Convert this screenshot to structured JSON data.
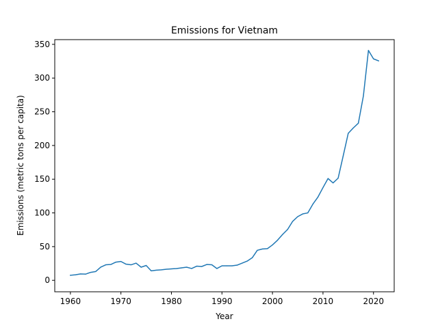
{
  "chart_data": {
    "type": "line",
    "title": "Emissions for Vietnam",
    "xlabel": "Year",
    "ylabel": "Emissions (metric tons per capita)",
    "xlim": [
      1956.9,
      2024.1
    ],
    "ylim": [
      -17,
      357
    ],
    "xticks": [
      1960,
      1970,
      1980,
      1990,
      2000,
      2010,
      2020
    ],
    "yticks": [
      0,
      50,
      100,
      150,
      200,
      250,
      300,
      350
    ],
    "grid": false,
    "series": [
      {
        "color": "#1f77b4",
        "x": [
          1960,
          1961,
          1962,
          1963,
          1964,
          1965,
          1966,
          1967,
          1968,
          1969,
          1970,
          1971,
          1972,
          1973,
          1974,
          1975,
          1976,
          1977,
          1978,
          1979,
          1980,
          1981,
          1982,
          1983,
          1984,
          1985,
          1986,
          1987,
          1988,
          1989,
          1990,
          1991,
          1992,
          1993,
          1994,
          1995,
          1996,
          1997,
          1998,
          1999,
          2000,
          2001,
          2002,
          2003,
          2004,
          2005,
          2006,
          2007,
          2008,
          2009,
          2010,
          2011,
          2012,
          2013,
          2014,
          2015,
          2016,
          2017,
          2018,
          2019,
          2020,
          2021
        ],
        "y": [
          7.5,
          8.2,
          9.5,
          9.2,
          11.8,
          13.0,
          19.5,
          23.0,
          23.5,
          27.0,
          28.0,
          24.0,
          23.0,
          25.5,
          19.5,
          22.0,
          14.0,
          15.0,
          15.5,
          16.5,
          17.0,
          17.5,
          18.5,
          19.5,
          17.5,
          21.0,
          20.5,
          23.5,
          23.0,
          17.5,
          21.5,
          21.5,
          21.5,
          22.5,
          25.5,
          28.5,
          33.5,
          44.5,
          46.5,
          47.0,
          52.5,
          59.5,
          68.0,
          75.5,
          87.5,
          94.5,
          98.5,
          100.0,
          113.0,
          123.5,
          137.5,
          151.0,
          144.5,
          151.5,
          184.5,
          218.0,
          226.0,
          233.0,
          273.5,
          341.0,
          328.5,
          325.5
        ]
      }
    ]
  }
}
